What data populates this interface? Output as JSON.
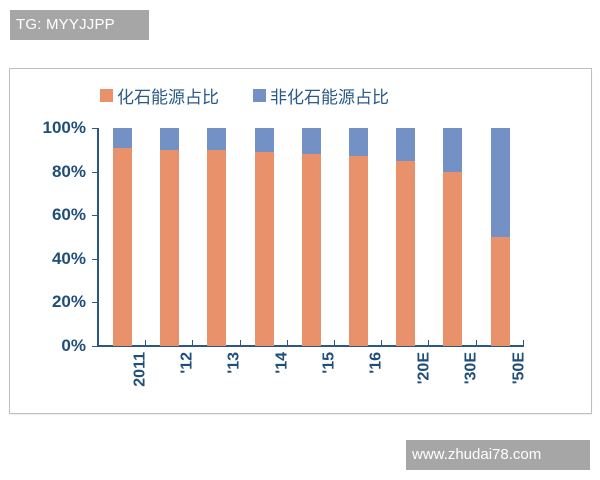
{
  "watermarks": {
    "top": "TG: MYYJJPP",
    "bottom": "www.zhudai78.com"
  },
  "colors": {
    "fossil": "#e8916b",
    "nonfossil": "#7391c4",
    "axis": "#2a5783",
    "text": "#1f4e79"
  },
  "legend": [
    {
      "label": "化石能源占比",
      "color": "#e8916b"
    },
    {
      "label": "非化石能源占比",
      "color": "#7391c4"
    }
  ],
  "y_axis": {
    "ticks": [
      "100%",
      "80%",
      "60%",
      "40%",
      "20%",
      "0%"
    ]
  },
  "x_axis": {
    "labels": [
      "2011",
      "'12",
      "'13",
      "'14",
      "'15",
      "'16",
      "'20E",
      "'30E",
      "'50E"
    ]
  },
  "chart_data": {
    "type": "bar",
    "stacked": true,
    "title": "",
    "xlabel": "",
    "ylabel": "",
    "ylim": [
      0,
      100
    ],
    "y_tick_labels": [
      "0%",
      "20%",
      "40%",
      "60%",
      "80%",
      "100%"
    ],
    "grid": false,
    "legend_position": "top",
    "categories": [
      "2011",
      "'12",
      "'13",
      "'14",
      "'15",
      "'16",
      "'20E",
      "'30E",
      "'50E"
    ],
    "series": [
      {
        "name": "化石能源占比",
        "color": "#e8916b",
        "values": [
          91,
          90,
          90,
          89,
          88,
          87,
          85,
          80,
          50
        ]
      },
      {
        "name": "非化石能源占比",
        "color": "#7391c4",
        "values": [
          9,
          10,
          10,
          11,
          12,
          13,
          15,
          20,
          50
        ]
      }
    ]
  }
}
